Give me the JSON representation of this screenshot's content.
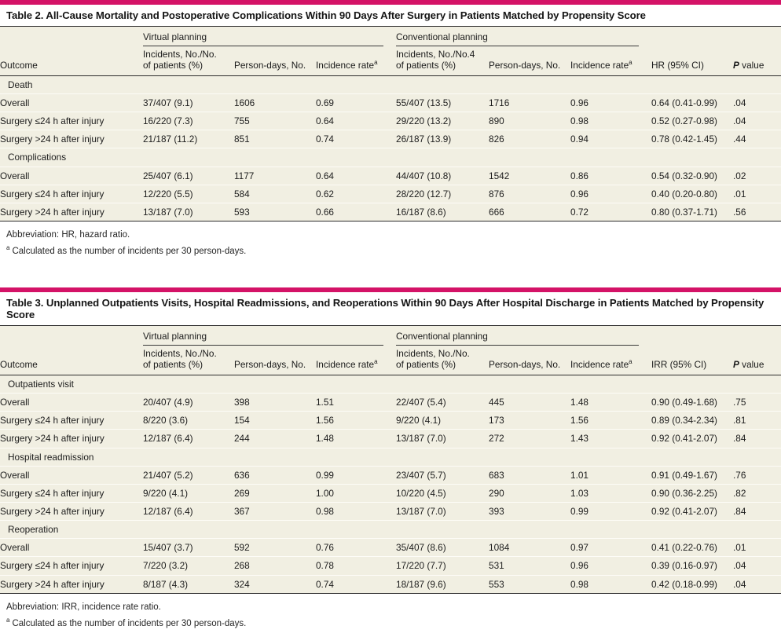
{
  "colors": {
    "accent_bar": "#d41367",
    "table_background": "#f1efe2",
    "dark_rule": "#2d2d2d",
    "text": "#1c1c1c"
  },
  "tables": [
    {
      "title": "Table 2. All-Cause Mortality and Postoperative Complications Within 90 Days After Surgery in Patients Matched by Propensity Score",
      "groups": {
        "virtual": "Virtual planning",
        "conventional": "Conventional planning"
      },
      "columns": {
        "outcome": "Outcome",
        "v_incidents_line1": "Incidents, No./No.",
        "v_incidents_line2": "of patients (%)",
        "v_persondays": "Person-days, No.",
        "v_incidence": "Incidence rate",
        "v_incidence_sup": "a",
        "c_incidents_line1": "Incidents, No./No.4",
        "c_incidents_line2": "of patients (%)",
        "c_persondays": "Person-days, No.",
        "c_incidence": "Incidence rate",
        "c_incidence_sup": "a",
        "effect": "HR (95% CI)",
        "p_italic": "P",
        "p_rest": " value"
      },
      "sections": [
        {
          "label": "Death",
          "rows": [
            {
              "outcome": "Overall",
              "cells": [
                "37/407 (9.1)",
                "1606",
                "0.69",
                "55/407 (13.5)",
                "1716",
                "0.96",
                "0.64 (0.41-0.99)",
                ".04"
              ]
            },
            {
              "outcome": "Surgery ≤24 h after injury",
              "cells": [
                "16/220 (7.3)",
                "755",
                "0.64",
                "29/220 (13.2)",
                "890",
                "0.98",
                "0.52 (0.27-0.98)",
                ".04"
              ]
            },
            {
              "outcome": "Surgery >24 h after injury",
              "cells": [
                "21/187 (11.2)",
                "851",
                "0.74",
                "26/187 (13.9)",
                "826",
                "0.94",
                "0.78 (0.42-1.45)",
                ".44"
              ]
            }
          ]
        },
        {
          "label": "Complications",
          "rows": [
            {
              "outcome": "Overall",
              "cells": [
                "25/407 (6.1)",
                "1177",
                "0.64",
                "44/407 (10.8)",
                "1542",
                "0.86",
                "0.54 (0.32-0.90)",
                ".02"
              ]
            },
            {
              "outcome": "Surgery ≤24 h after injury",
              "cells": [
                "12/220 (5.5)",
                "584",
                "0.62",
                "28/220 (12.7)",
                "876",
                "0.96",
                "0.40 (0.20-0.80)",
                ".01"
              ]
            },
            {
              "outcome": "Surgery >24 h after injury",
              "cells": [
                "13/187 (7.0)",
                "593",
                "0.66",
                "16/187 (8.6)",
                "666",
                "0.72",
                "0.80 (0.37-1.71)",
                ".56"
              ]
            }
          ]
        }
      ],
      "footnotes": {
        "abbreviation": "Abbreviation: HR, hazard ratio.",
        "sup_marker": "a",
        "sup_text": "Calculated as the number of incidents per 30 person-days."
      }
    },
    {
      "title": "Table 3. Unplanned Outpatients Visits, Hospital Readmissions, and Reoperations Within 90 Days After Hospital Discharge in Patients Matched by Propensity Score",
      "groups": {
        "virtual": "Virtual planning",
        "conventional": "Conventional planning"
      },
      "columns": {
        "outcome": "Outcome",
        "v_incidents_line1": "Incidents, No./No.",
        "v_incidents_line2": "of patients (%)",
        "v_persondays": "Person-days, No.",
        "v_incidence": "Incidence rate",
        "v_incidence_sup": "a",
        "c_incidents_line1": "Incidents, No./No.",
        "c_incidents_line2": "of patients (%)",
        "c_persondays": "Person-days, No.",
        "c_incidence": "Incidence rate",
        "c_incidence_sup": "a",
        "effect": "IRR (95% CI)",
        "p_italic": "P",
        "p_rest": " value"
      },
      "sections": [
        {
          "label": "Outpatients visit",
          "rows": [
            {
              "outcome": "Overall",
              "cells": [
                "20/407 (4.9)",
                "398",
                "1.51",
                "22/407 (5.4)",
                "445",
                "1.48",
                "0.90 (0.49-1.68)",
                ".75"
              ]
            },
            {
              "outcome": "Surgery ≤24 h after injury",
              "cells": [
                "8/220 (3.6)",
                "154",
                "1.56",
                "9/220 (4.1)",
                "173",
                "1.56",
                "0.89 (0.34-2.34)",
                ".81"
              ]
            },
            {
              "outcome": "Surgery >24 h after injury",
              "cells": [
                "12/187 (6.4)",
                "244",
                "1.48",
                "13/187 (7.0)",
                "272",
                "1.43",
                "0.92 (0.41-2.07)",
                ".84"
              ]
            }
          ]
        },
        {
          "label": "Hospital readmission",
          "rows": [
            {
              "outcome": "Overall",
              "cells": [
                "21/407 (5.2)",
                "636",
                "0.99",
                "23/407 (5.7)",
                "683",
                "1.01",
                "0.91 (0.49-1.67)",
                ".76"
              ]
            },
            {
              "outcome": "Surgery ≤24 h after injury",
              "cells": [
                "9/220 (4.1)",
                "269",
                "1.00",
                "10/220 (4.5)",
                "290",
                "1.03",
                "0.90 (0.36-2.25)",
                ".82"
              ]
            },
            {
              "outcome": "Surgery >24 h after injury",
              "cells": [
                "12/187 (6.4)",
                "367",
                "0.98",
                "13/187 (7.0)",
                "393",
                "0.99",
                "0.92 (0.41-2.07)",
                ".84"
              ]
            }
          ]
        },
        {
          "label": "Reoperation",
          "rows": [
            {
              "outcome": "Overall",
              "cells": [
                "15/407 (3.7)",
                "592",
                "0.76",
                "35/407 (8.6)",
                "1084",
                "0.97",
                "0.41 (0.22-0.76)",
                ".01"
              ]
            },
            {
              "outcome": "Surgery ≤24 h after injury",
              "cells": [
                "7/220 (3.2)",
                "268",
                "0.78",
                "17/220 (7.7)",
                "531",
                "0.96",
                "0.39 (0.16-0.97)",
                ".04"
              ]
            },
            {
              "outcome": "Surgery >24 h after injury",
              "cells": [
                "8/187 (4.3)",
                "324",
                "0.74",
                "18/187 (9.6)",
                "553",
                "0.98",
                "0.42 (0.18-0.99)",
                ".04"
              ]
            }
          ]
        }
      ],
      "footnotes": {
        "abbreviation": "Abbreviation: IRR, incidence rate ratio.",
        "sup_marker": "a",
        "sup_text": "Calculated as the number of incidents per 30 person-days."
      }
    }
  ]
}
